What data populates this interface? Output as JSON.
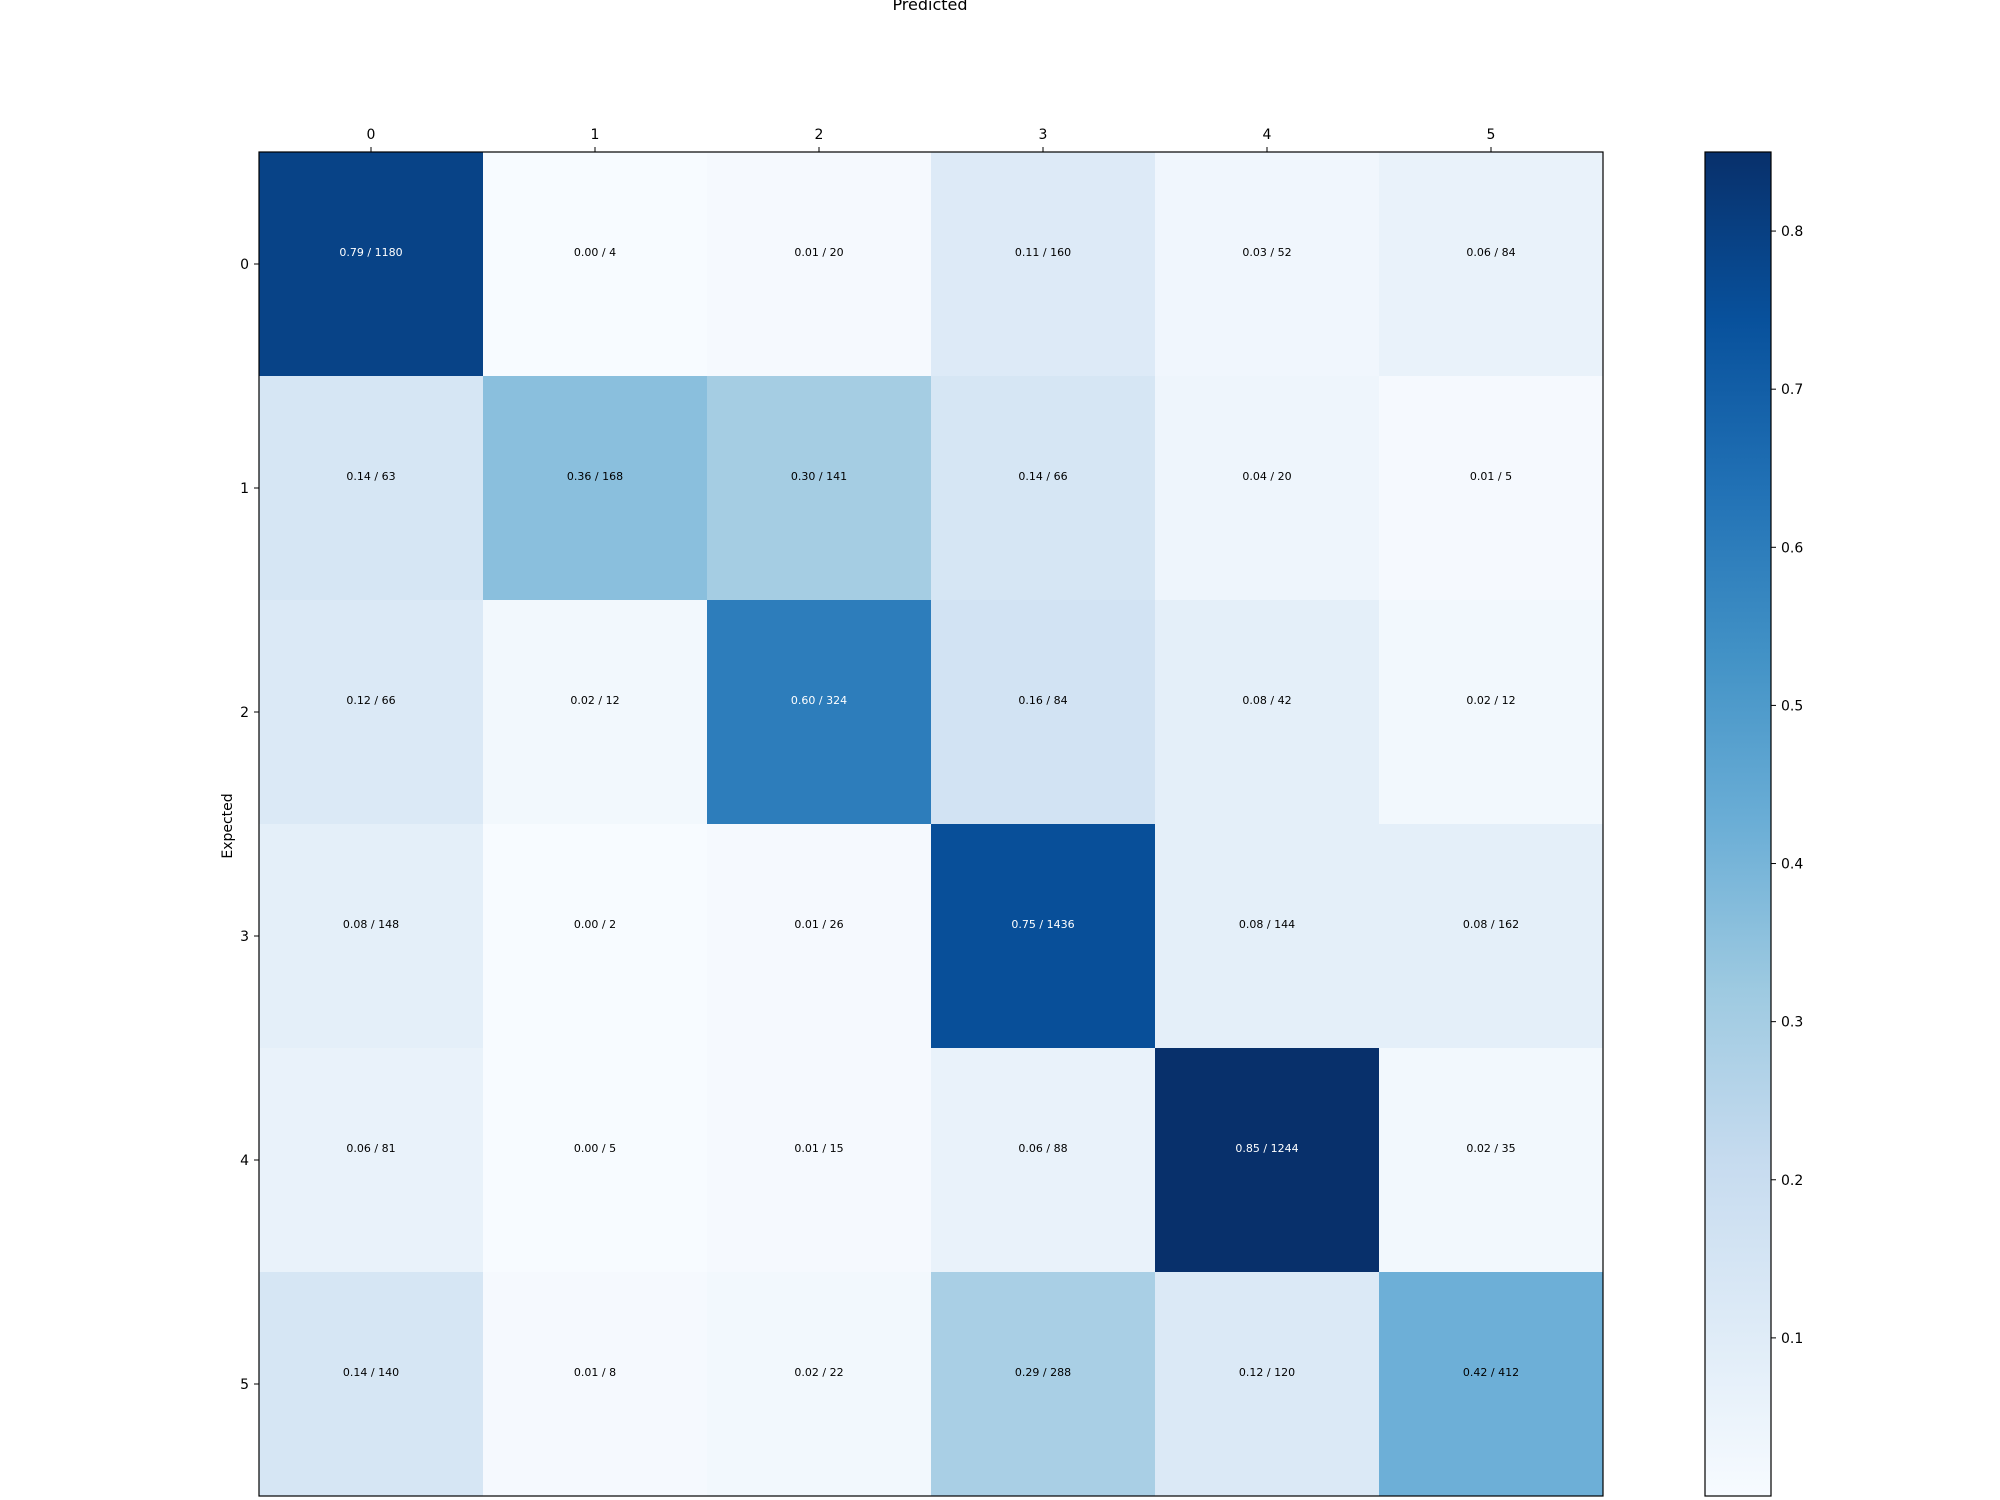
{
  "chart_data": {
    "type": "heatmap",
    "title": "Predicted",
    "xlabel": "Predicted",
    "ylabel": "Expected",
    "x_categories": [
      "0",
      "1",
      "2",
      "3",
      "4",
      "5"
    ],
    "y_categories": [
      "0",
      "1",
      "2",
      "3",
      "4",
      "5"
    ],
    "ratios": [
      [
        0.79,
        0.0,
        0.01,
        0.11,
        0.03,
        0.06
      ],
      [
        0.14,
        0.36,
        0.3,
        0.14,
        0.04,
        0.01
      ],
      [
        0.12,
        0.02,
        0.6,
        0.16,
        0.08,
        0.02
      ],
      [
        0.08,
        0.0,
        0.01,
        0.75,
        0.08,
        0.08
      ],
      [
        0.06,
        0.0,
        0.01,
        0.06,
        0.85,
        0.02
      ],
      [
        0.14,
        0.01,
        0.02,
        0.29,
        0.12,
        0.42
      ]
    ],
    "counts": [
      [
        1180,
        4,
        20,
        160,
        52,
        84
      ],
      [
        63,
        168,
        141,
        66,
        20,
        5
      ],
      [
        66,
        12,
        324,
        84,
        42,
        12
      ],
      [
        148,
        2,
        26,
        1436,
        144,
        162
      ],
      [
        81,
        5,
        15,
        88,
        1244,
        35
      ],
      [
        140,
        8,
        22,
        288,
        120,
        412
      ]
    ],
    "cell_labels": [
      [
        "0.79 / 1180",
        "0.00 / 4",
        "0.01 / 20",
        "0.11 / 160",
        "0.03 / 52",
        "0.06 / 84"
      ],
      [
        "0.14 / 63",
        "0.36 / 168",
        "0.30 / 141",
        "0.14 / 66",
        "0.04 / 20",
        "0.01 / 5"
      ],
      [
        "0.12 / 66",
        "0.02 / 12",
        "0.60 / 324",
        "0.16 / 84",
        "0.08 / 42",
        "0.02 / 12"
      ],
      [
        "0.08 / 148",
        "0.00 / 2",
        "0.01 / 26",
        "0.75 / 1436",
        "0.08 / 144",
        "0.08 / 162"
      ],
      [
        "0.06 / 81",
        "0.00 / 5",
        "0.01 / 15",
        "0.06 / 88",
        "0.85 / 1244",
        "0.02 / 35"
      ],
      [
        "0.14 / 140",
        "0.01 / 8",
        "0.02 / 22",
        "0.29 / 288",
        "0.12 / 120",
        "0.42 / 412"
      ]
    ],
    "colorbar": {
      "colormap": "Blues",
      "min": 0.0,
      "max": 0.85,
      "ticks": [
        0.1,
        0.2,
        0.3,
        0.4,
        0.5,
        0.6,
        0.7,
        0.8
      ],
      "tick_labels": [
        "0.1",
        "0.2",
        "0.3",
        "0.4",
        "0.5",
        "0.6",
        "0.7",
        "0.8"
      ]
    },
    "x_axis_position": "top",
    "grid": false
  }
}
